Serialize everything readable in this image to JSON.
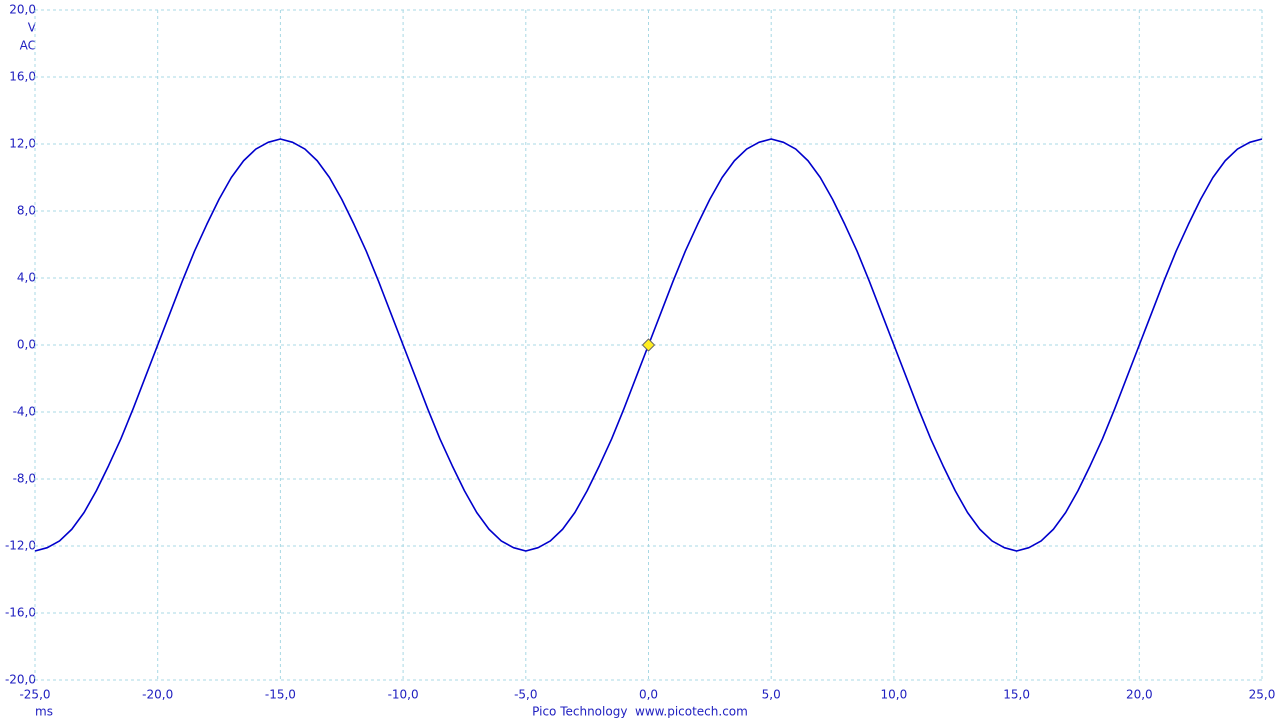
{
  "chart_data": {
    "type": "line",
    "y_unit": "V",
    "y_coupling": "AC",
    "x_unit": "ms",
    "footer": "Pico Technology  www.picotech.com",
    "x": [
      -25,
      -24.5,
      -24,
      -23.5,
      -23,
      -22.5,
      -22,
      -21.5,
      -21,
      -20.5,
      -20,
      -19.5,
      -19,
      -18.5,
      -18,
      -17.5,
      -17,
      -16.5,
      -16,
      -15.5,
      -15,
      -14.5,
      -14,
      -13.5,
      -13,
      -12.5,
      -12,
      -11.5,
      -11,
      -10.5,
      -10,
      -9.5,
      -9,
      -8.5,
      -8,
      -7.5,
      -7,
      -6.5,
      -6,
      -5.5,
      -5,
      -4.5,
      -4,
      -3.5,
      -3,
      -2.5,
      -2,
      -1.5,
      -1,
      -0.5,
      0,
      0.5,
      1,
      1.5,
      2,
      2.5,
      3,
      3.5,
      4,
      4.5,
      5,
      5.5,
      6,
      6.5,
      7,
      7.5,
      8,
      8.5,
      9,
      9.5,
      10,
      10.5,
      11,
      11.5,
      12,
      12.5,
      13,
      13.5,
      14,
      14.5,
      15,
      15.5,
      16,
      16.5,
      17,
      17.5,
      18,
      18.5,
      19,
      19.5,
      20,
      20.5,
      21,
      21.5,
      22,
      22.5,
      23,
      23.5,
      24,
      24.5,
      25
    ],
    "values": [
      -12.3,
      -12.1,
      -11.7,
      -11.0,
      -10.0,
      -8.7,
      -7.2,
      -5.6,
      -3.8,
      -1.9,
      0,
      1.9,
      3.8,
      5.6,
      7.2,
      8.7,
      10.0,
      11.0,
      11.7,
      12.1,
      12.3,
      12.1,
      11.7,
      11.0,
      10.0,
      8.7,
      7.2,
      5.6,
      3.8,
      1.9,
      0,
      -1.9,
      -3.8,
      -5.6,
      -7.2,
      -8.7,
      -10.0,
      -11.0,
      -11.7,
      -12.1,
      -12.3,
      -12.1,
      -11.7,
      -11.0,
      -10.0,
      -8.7,
      -7.2,
      -5.6,
      -3.8,
      -1.9,
      0,
      1.9,
      3.8,
      5.6,
      7.2,
      8.7,
      10.0,
      11.0,
      11.7,
      12.1,
      12.3,
      12.1,
      11.7,
      11.0,
      10.0,
      8.7,
      7.2,
      5.6,
      3.8,
      1.9,
      0,
      -1.9,
      -3.8,
      -5.6,
      -7.2,
      -8.7,
      -10.0,
      -11.0,
      -11.7,
      -12.1,
      -12.3,
      -12.1,
      -11.7,
      -11.0,
      -10.0,
      -8.7,
      -7.2,
      -5.6,
      -3.8,
      -1.9,
      0,
      1.9,
      3.8,
      5.6,
      7.2,
      8.7,
      10.0,
      11.0,
      11.7,
      12.1,
      12.3
    ],
    "color": "#0000cc",
    "trigger": {
      "x": 0,
      "y": 0,
      "color": "#ffee22"
    },
    "xlim": [
      -25,
      25
    ],
    "xticks": [
      {
        "value": -25,
        "label": "-25,0"
      },
      {
        "value": -20,
        "label": "-20,0"
      },
      {
        "value": -15,
        "label": "-15,0"
      },
      {
        "value": -10,
        "label": "-10,0"
      },
      {
        "value": -5,
        "label": "-5,0"
      },
      {
        "value": 0,
        "label": "0,0"
      },
      {
        "value": 5,
        "label": "5,0"
      },
      {
        "value": 10,
        "label": "10,0"
      },
      {
        "value": 15,
        "label": "15,0"
      },
      {
        "value": 20,
        "label": "20,0"
      },
      {
        "value": 25,
        "label": "25,0"
      }
    ],
    "ylim": [
      -20,
      20
    ],
    "yticks": [
      {
        "value": -20,
        "label": "-20,0"
      },
      {
        "value": -16,
        "label": "-16,0"
      },
      {
        "value": -12,
        "label": "-12,0"
      },
      {
        "value": -8,
        "label": "-8,0"
      },
      {
        "value": -4,
        "label": "-4,0"
      },
      {
        "value": 0,
        "label": "0,0"
      },
      {
        "value": 4,
        "label": "4,0"
      },
      {
        "value": 8,
        "label": "8,0"
      },
      {
        "value": 12,
        "label": "12,0"
      },
      {
        "value": 16,
        "label": "16,0"
      },
      {
        "value": 20,
        "label": "20,0"
      }
    ],
    "grid": true
  }
}
